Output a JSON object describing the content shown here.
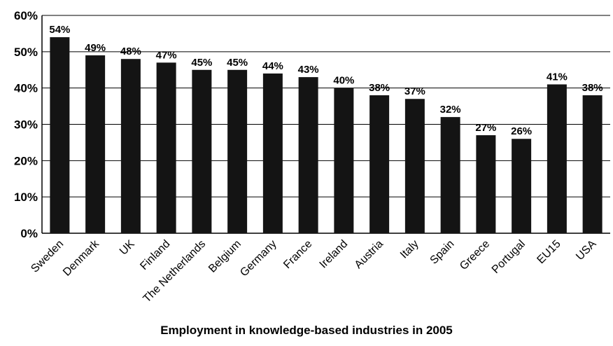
{
  "chart_data": {
    "type": "bar",
    "title": "Employment in knowledge-based industries in 2005",
    "xlabel": "",
    "ylabel": "",
    "categories": [
      "Sweden",
      "Denmark",
      "UK",
      "Finland",
      "The Netherlands",
      "Belgium",
      "Germany",
      "France",
      "Ireland",
      "Austria",
      "Italy",
      "Spain",
      "Greece",
      "Portugal",
      "EU15",
      "USA"
    ],
    "values": [
      54,
      49,
      48,
      47,
      45,
      45,
      44,
      43,
      40,
      38,
      37,
      32,
      27,
      26,
      41,
      38
    ],
    "data_labels": [
      "54%",
      "49%",
      "48%",
      "47%",
      "45%",
      "45%",
      "44%",
      "43%",
      "40%",
      "38%",
      "37%",
      "32%",
      "27%",
      "26%",
      "41%",
      "38%"
    ],
    "ylim": [
      0,
      60
    ],
    "yticks": [
      0,
      10,
      20,
      30,
      40,
      50,
      60
    ],
    "ytick_labels": [
      "0%",
      "10%",
      "20%",
      "30%",
      "40%",
      "50%",
      "60%"
    ],
    "grid": true,
    "bar_color": "#141414",
    "grid_color": "#000000"
  }
}
